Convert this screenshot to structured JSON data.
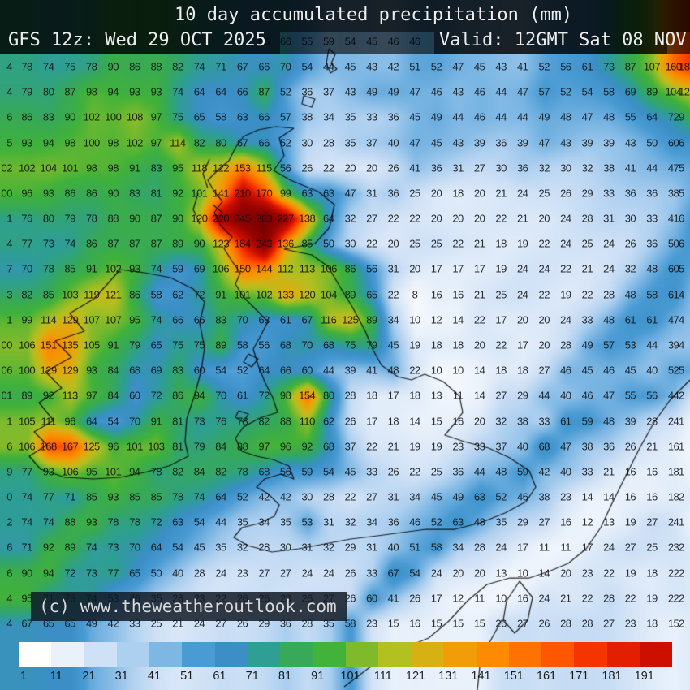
{
  "header": {
    "title": "10 day accumulated precipitation (mm)",
    "run_label": "GFS 12z: Wed 29 OCT 2025",
    "valid_label": "Valid: 12GMT Sat 08 NOV"
  },
  "watermark": {
    "text": "(c) www.theweatheroutlook.com"
  },
  "chart_data": {
    "type": "heatmap",
    "title": "10 day accumulated precipitation (mm)",
    "unit": "mm",
    "model_run": "GFS 12z: Wed 29 OCT 2025",
    "valid_time": "Valid: 12GMT Sat 08 NOV",
    "grid_cols": 33,
    "grid_rows": 23,
    "values": [
      [
        "4",
        78,
        74,
        75,
        78,
        90,
        86,
        88,
        82,
        74,
        71,
        67,
        66,
        70,
        54,
        44,
        45,
        43,
        42,
        51,
        52,
        47,
        45,
        43,
        41,
        52,
        56,
        61,
        73,
        87,
        107,
        160,
        "18"
      ],
      [
        "4",
        79,
        80,
        87,
        98,
        94,
        93,
        93,
        74,
        64,
        64,
        66,
        87,
        52,
        36,
        37,
        43,
        49,
        49,
        47,
        46,
        43,
        46,
        44,
        47,
        57,
        52,
        54,
        58,
        69,
        89,
        104,
        "12"
      ],
      [
        "6",
        86,
        83,
        90,
        102,
        100,
        108,
        97,
        75,
        65,
        58,
        63,
        66,
        57,
        38,
        34,
        35,
        33,
        36,
        45,
        49,
        44,
        46,
        44,
        44,
        49,
        48,
        47,
        48,
        55,
        64,
        72,
        "9"
      ],
      [
        "5",
        93,
        94,
        98,
        100,
        98,
        102,
        97,
        114,
        82,
        80,
        67,
        66,
        52,
        30,
        28,
        35,
        37,
        40,
        47,
        45,
        43,
        39,
        36,
        39,
        47,
        43,
        39,
        39,
        43,
        50,
        60,
        "6"
      ],
      [
        "02",
        102,
        104,
        101,
        98,
        98,
        91,
        83,
        95,
        118,
        122,
        153,
        115,
        56,
        26,
        22,
        20,
        20,
        26,
        41,
        36,
        31,
        27,
        30,
        36,
        32,
        30,
        32,
        38,
        41,
        44,
        47,
        "5"
      ],
      [
        "00",
        96,
        93,
        86,
        86,
        90,
        83,
        81,
        92,
        101,
        141,
        210,
        170,
        99,
        63,
        63,
        47,
        31,
        36,
        25,
        20,
        18,
        20,
        21,
        24,
        25,
        26,
        29,
        33,
        36,
        36,
        38,
        "5"
      ],
      [
        "1",
        76,
        80,
        79,
        78,
        88,
        90,
        87,
        90,
        120,
        220,
        245,
        263,
        227,
        138,
        64,
        32,
        27,
        22,
        22,
        20,
        20,
        20,
        22,
        21,
        20,
        24,
        28,
        31,
        30,
        33,
        41,
        "6"
      ],
      [
        "4",
        77,
        73,
        74,
        86,
        87,
        87,
        87,
        89,
        90,
        123,
        184,
        243,
        136,
        85,
        50,
        30,
        22,
        20,
        25,
        25,
        22,
        21,
        18,
        19,
        22,
        24,
        25,
        24,
        26,
        36,
        50,
        "6"
      ],
      [
        "7",
        70,
        78,
        85,
        91,
        102,
        93,
        74,
        59,
        69,
        106,
        150,
        144,
        112,
        113,
        106,
        86,
        56,
        31,
        20,
        17,
        17,
        17,
        19,
        24,
        24,
        22,
        21,
        24,
        32,
        48,
        60,
        "5"
      ],
      [
        "3",
        82,
        85,
        103,
        119,
        121,
        86,
        58,
        62,
        72,
        91,
        101,
        102,
        133,
        120,
        104,
        89,
        65,
        22,
        8,
        16,
        16,
        21,
        25,
        24,
        22,
        19,
        22,
        28,
        48,
        58,
        61,
        "4"
      ],
      [
        "1",
        99,
        114,
        129,
        107,
        107,
        95,
        74,
        66,
        66,
        83,
        70,
        63,
        61,
        67,
        116,
        125,
        89,
        34,
        10,
        12,
        14,
        22,
        17,
        20,
        20,
        24,
        33,
        48,
        61,
        61,
        47,
        "4"
      ],
      [
        "00",
        106,
        151,
        135,
        105,
        91,
        79,
        65,
        75,
        75,
        89,
        58,
        56,
        68,
        70,
        68,
        75,
        79,
        45,
        19,
        18,
        18,
        20,
        22,
        17,
        20,
        28,
        49,
        57,
        53,
        44,
        39,
        "4"
      ],
      [
        "06",
        100,
        129,
        129,
        93,
        84,
        68,
        69,
        83,
        60,
        54,
        52,
        64,
        66,
        60,
        44,
        39,
        41,
        48,
        22,
        10,
        10,
        14,
        18,
        18,
        27,
        46,
        45,
        46,
        45,
        40,
        52,
        "5"
      ],
      [
        "01",
        89,
        92,
        113,
        97,
        84,
        60,
        72,
        86,
        94,
        70,
        61,
        72,
        98,
        154,
        80,
        28,
        18,
        17,
        18,
        13,
        11,
        14,
        27,
        29,
        44,
        40,
        46,
        47,
        55,
        56,
        44,
        "2"
      ],
      [
        "1",
        105,
        111,
        96,
        64,
        54,
        70,
        91,
        81,
        73,
        76,
        78,
        82,
        88,
        110,
        62,
        26,
        17,
        18,
        14,
        15,
        16,
        20,
        32,
        38,
        33,
        61,
        59,
        48,
        39,
        28,
        24,
        "1"
      ],
      [
        "6",
        106,
        168,
        167,
        125,
        96,
        101,
        103,
        81,
        79,
        84,
        88,
        97,
        96,
        92,
        68,
        37,
        22,
        21,
        19,
        19,
        23,
        33,
        37,
        40,
        68,
        47,
        38,
        36,
        26,
        21,
        16,
        "1"
      ],
      [
        "9",
        77,
        93,
        106,
        95,
        101,
        94,
        78,
        82,
        84,
        82,
        78,
        68,
        56,
        59,
        54,
        45,
        33,
        26,
        22,
        25,
        36,
        44,
        48,
        59,
        42,
        40,
        33,
        21,
        16,
        16,
        18,
        "1"
      ],
      [
        "0",
        74,
        77,
        71,
        85,
        93,
        85,
        85,
        78,
        74,
        64,
        52,
        42,
        42,
        30,
        28,
        22,
        27,
        31,
        34,
        45,
        49,
        63,
        52,
        46,
        38,
        23,
        14,
        14,
        16,
        16,
        18,
        "2"
      ],
      [
        "2",
        74,
        74,
        88,
        93,
        78,
        78,
        72,
        63,
        54,
        44,
        35,
        34,
        35,
        53,
        31,
        32,
        34,
        36,
        46,
        52,
        63,
        48,
        35,
        29,
        27,
        16,
        12,
        13,
        19,
        27,
        24,
        "1"
      ],
      [
        "6",
        71,
        92,
        89,
        74,
        73,
        70,
        64,
        54,
        45,
        35,
        32,
        28,
        30,
        31,
        32,
        29,
        31,
        40,
        51,
        58,
        34,
        28,
        24,
        17,
        11,
        11,
        17,
        24,
        27,
        25,
        23,
        "2"
      ],
      [
        "6",
        90,
        94,
        72,
        73,
        77,
        65,
        50,
        40,
        28,
        24,
        23,
        27,
        27,
        24,
        24,
        26,
        33,
        67,
        54,
        24,
        20,
        20,
        13,
        10,
        14,
        20,
        23,
        22,
        19,
        18,
        22,
        "2"
      ],
      [
        "4",
        95,
        71,
        75,
        74,
        53,
        46,
        35,
        28,
        23,
        22,
        26,
        26,
        23,
        26,
        27,
        26,
        60,
        41,
        26,
        17,
        12,
        11,
        10,
        16,
        24,
        21,
        22,
        28,
        22,
        19,
        22,
        "2"
      ],
      [
        "4",
        67,
        65,
        65,
        49,
        42,
        33,
        25,
        21,
        24,
        27,
        26,
        29,
        36,
        28,
        35,
        58,
        23,
        15,
        16,
        15,
        15,
        15,
        26,
        27,
        26,
        28,
        28,
        27,
        23,
        18,
        15,
        "2"
      ]
    ],
    "partial_header_row_values": [
      "66",
      "66",
      "55",
      "59",
      "54",
      "45",
      "46",
      "46"
    ],
    "colorbar": {
      "tick_labels": [
        1,
        11,
        21,
        31,
        41,
        51,
        61,
        71,
        81,
        91,
        101,
        111,
        121,
        131,
        141,
        151,
        161,
        171,
        181,
        191
      ],
      "colors": [
        "#ffffff",
        "#e9f1fb",
        "#cfe1f6",
        "#aed0f0",
        "#7db7e4",
        "#4a9bd4",
        "#3b8fc6",
        "#2e9f92",
        "#37a958",
        "#41b23a",
        "#7fba2c",
        "#b2c020",
        "#d7b113",
        "#f09d07",
        "#fd8a00",
        "#ff7100",
        "#ff5600",
        "#f63400",
        "#e41e00",
        "#cd0f00"
      ]
    }
  }
}
